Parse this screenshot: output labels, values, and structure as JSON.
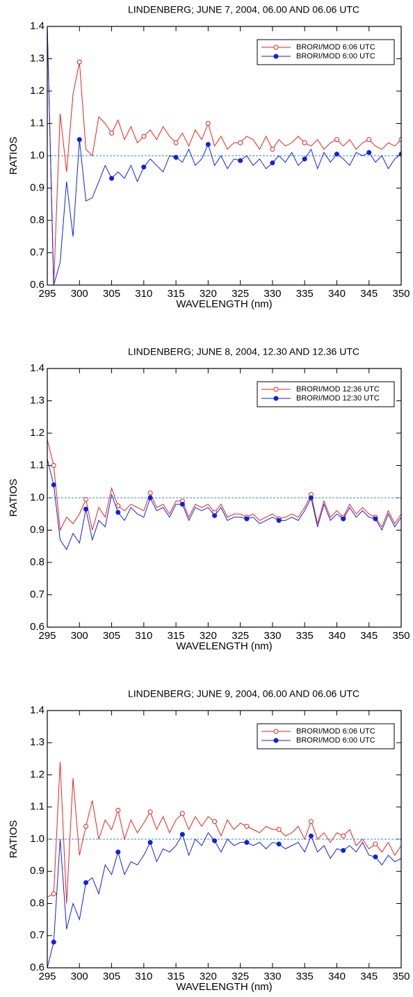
{
  "chart_data": [
    {
      "type": "line",
      "title": "LINDENBERG; JUNE 7, 2004, 06.00 AND 06.06 UTC",
      "xlabel": "WAVELENGTH (nm)",
      "ylabel": "RATIOS",
      "x": [
        295,
        296,
        297,
        298,
        299,
        300,
        301,
        302,
        303,
        304,
        305,
        306,
        307,
        308,
        309,
        310,
        311,
        312,
        313,
        314,
        315,
        316,
        317,
        318,
        319,
        320,
        321,
        322,
        323,
        324,
        325,
        326,
        327,
        328,
        329,
        330,
        331,
        332,
        333,
        334,
        335,
        336,
        337,
        338,
        339,
        340,
        341,
        342,
        343,
        344,
        345,
        346,
        347,
        348,
        349,
        350
      ],
      "series": [
        {
          "name": "BRORI/MOD 6:06 UTC",
          "color": "#e8221c",
          "marker": "open",
          "values": [
            1.4,
            0.6,
            1.13,
            0.95,
            1.19,
            1.29,
            1.02,
            1.0,
            1.12,
            1.1,
            1.07,
            1.11,
            1.05,
            1.09,
            1.04,
            1.06,
            1.08,
            1.05,
            1.09,
            1.06,
            1.04,
            1.07,
            1.03,
            1.08,
            1.05,
            1.1,
            1.03,
            1.06,
            1.02,
            1.04,
            1.04,
            1.06,
            1.05,
            1.02,
            1.06,
            1.02,
            1.05,
            1.03,
            1.04,
            1.06,
            1.04,
            1.03,
            1.05,
            1.02,
            1.04,
            1.05,
            1.03,
            1.05,
            1.02,
            1.04,
            1.05,
            1.03,
            1.02,
            1.04,
            1.03,
            1.05
          ]
        },
        {
          "name": "BRORI/MOD 6:00 UTC",
          "color": "#1020e0",
          "marker": "filled",
          "values": [
            1.4,
            0.6,
            0.67,
            0.92,
            0.75,
            1.05,
            0.86,
            0.87,
            0.92,
            0.97,
            0.93,
            0.95,
            0.93,
            0.97,
            0.92,
            0.965,
            0.99,
            0.97,
            0.95,
            1.0,
            0.995,
            0.98,
            1.02,
            0.97,
            0.99,
            1.035,
            0.97,
            1.0,
            0.96,
            0.99,
            0.985,
            1.0,
            0.97,
            0.99,
            0.96,
            0.978,
            1.0,
            0.98,
            1.01,
            0.97,
            0.99,
            1.02,
            0.96,
            1.01,
            0.98,
            1.005,
            0.99,
            0.97,
            1.01,
            1.0,
            1.01,
            0.98,
            1.0,
            0.96,
            0.99,
            1.005
          ]
        }
      ],
      "markevery": {
        "start": 5,
        "step": 5
      },
      "hline": {
        "value": 1,
        "color": "#2a8fd6",
        "style": "dashed"
      },
      "xlim": [
        295,
        350
      ],
      "ylim": [
        0.6,
        1.4
      ],
      "xticks": [
        295,
        300,
        305,
        310,
        315,
        320,
        325,
        330,
        335,
        340,
        345,
        350
      ],
      "yticks": [
        0.6,
        0.7,
        0.8,
        0.9,
        {
          "value": 1,
          "label": "1.0"
        },
        1.1,
        1.2,
        1.3,
        1.4
      ],
      "legend": "upper right"
    },
    {
      "type": "line",
      "title": "LINDENBERG; JUNE 8, 2004, 12.30 AND 12.36 UTC",
      "xlabel": "WAVELENGTH (nm)",
      "ylabel": "RATIOS",
      "x": [
        295,
        296,
        297,
        298,
        299,
        300,
        301,
        302,
        303,
        304,
        305,
        306,
        307,
        308,
        309,
        310,
        311,
        312,
        313,
        314,
        315,
        316,
        317,
        318,
        319,
        320,
        321,
        322,
        323,
        324,
        325,
        326,
        327,
        328,
        329,
        330,
        331,
        332,
        333,
        334,
        335,
        336,
        337,
        338,
        339,
        340,
        341,
        342,
        343,
        344,
        345,
        346,
        347,
        348,
        349,
        350
      ],
      "series": [
        {
          "name": "BRORI/MOD 12:36 UTC",
          "color": "#e8221c",
          "marker": "open",
          "values": [
            1.18,
            1.1,
            0.9,
            0.94,
            0.92,
            0.95,
            0.995,
            0.9,
            0.97,
            0.94,
            1.03,
            0.975,
            0.96,
            0.98,
            0.97,
            0.96,
            1.015,
            0.97,
            0.98,
            0.95,
            0.99,
            0.99,
            0.94,
            0.98,
            0.97,
            0.98,
            0.955,
            0.98,
            0.94,
            0.95,
            0.95,
            0.94,
            0.95,
            0.93,
            0.94,
            0.95,
            0.935,
            0.94,
            0.95,
            0.94,
            0.97,
            1.01,
            0.92,
            0.99,
            0.94,
            0.96,
            0.94,
            0.98,
            0.95,
            0.97,
            0.95,
            0.94,
            0.91,
            0.96,
            0.92,
            0.95
          ]
        },
        {
          "name": "BRORI/MOD 12:30 UTC",
          "color": "#1020e0",
          "marker": "filled",
          "values": [
            1.12,
            1.04,
            0.87,
            0.84,
            0.89,
            0.86,
            0.965,
            0.87,
            0.93,
            0.91,
            1.01,
            0.955,
            0.93,
            0.97,
            0.95,
            0.94,
            1.0,
            0.96,
            0.97,
            0.94,
            0.98,
            0.98,
            0.93,
            0.97,
            0.96,
            0.97,
            0.945,
            0.97,
            0.93,
            0.94,
            0.94,
            0.935,
            0.94,
            0.92,
            0.93,
            0.94,
            0.93,
            0.93,
            0.94,
            0.93,
            0.96,
            1.0,
            0.91,
            0.98,
            0.93,
            0.95,
            0.935,
            0.97,
            0.94,
            0.96,
            0.94,
            0.935,
            0.9,
            0.95,
            0.91,
            0.94
          ]
        }
      ],
      "markevery": {
        "start": 1,
        "step": 5
      },
      "hline": {
        "value": 1,
        "color": "#2a8fd6",
        "style": "dashed"
      },
      "xlim": [
        295,
        350
      ],
      "ylim": [
        0.6,
        1.4
      ],
      "xticks": [
        295,
        300,
        305,
        310,
        315,
        320,
        325,
        330,
        335,
        340,
        345,
        350
      ],
      "yticks": [
        0.6,
        0.7,
        0.8,
        0.9,
        {
          "value": 1,
          "label": "1.0"
        },
        1.1,
        1.2,
        1.3,
        1.4
      ],
      "legend": "upper right"
    },
    {
      "type": "line",
      "title": "LINDENBERG; JUNE 9, 2004, 06.00 AND 06.06 UTC",
      "xlabel": "WAVELENGTH (nm)",
      "ylabel": "RATIOS",
      "x": [
        295,
        296,
        297,
        298,
        299,
        300,
        301,
        302,
        303,
        304,
        305,
        306,
        307,
        308,
        309,
        310,
        311,
        312,
        313,
        314,
        315,
        316,
        317,
        318,
        319,
        320,
        321,
        322,
        323,
        324,
        325,
        326,
        327,
        328,
        329,
        330,
        331,
        332,
        333,
        334,
        335,
        336,
        337,
        338,
        339,
        340,
        341,
        342,
        343,
        344,
        345,
        346,
        347,
        348,
        349,
        350
      ],
      "series": [
        {
          "name": "BRORI/MOD 6:06 UTC",
          "color": "#e8221c",
          "marker": "open",
          "values": [
            0.82,
            0.83,
            1.24,
            0.8,
            1.19,
            0.95,
            1.04,
            1.12,
            1.0,
            1.06,
            1.03,
            1.09,
            1.0,
            1.06,
            1.02,
            1.05,
            1.085,
            1.03,
            1.07,
            1.02,
            1.06,
            1.08,
            1.03,
            1.07,
            1.04,
            1.07,
            1.055,
            1.01,
            1.06,
            1.03,
            1.05,
            1.04,
            1.03,
            1.02,
            1.04,
            1.03,
            1.03,
            1.01,
            1.02,
            1.04,
            1.0,
            1.055,
            1.0,
            1.02,
            0.99,
            1.02,
            1.01,
            1.03,
            0.98,
            1.0,
            0.97,
            0.985,
            0.96,
            0.99,
            0.95,
            0.98
          ]
        },
        {
          "name": "BRORI/MOD 6:00 UTC",
          "color": "#1020e0",
          "marker": "filled",
          "values": [
            0.6,
            0.68,
            1.0,
            0.72,
            0.8,
            0.75,
            0.865,
            0.88,
            0.83,
            0.92,
            0.89,
            0.96,
            0.89,
            0.93,
            0.92,
            0.95,
            0.99,
            0.93,
            0.97,
            0.96,
            0.98,
            1.015,
            0.95,
            1.0,
            0.98,
            1.02,
            0.995,
            0.96,
            1.0,
            0.98,
            0.99,
            0.99,
            0.98,
            0.99,
            0.97,
            0.99,
            0.985,
            0.97,
            0.98,
            0.99,
            0.96,
            1.01,
            0.96,
            0.98,
            0.94,
            0.97,
            0.965,
            0.98,
            0.96,
            0.99,
            0.95,
            0.945,
            0.92,
            0.95,
            0.93,
            0.94
          ]
        }
      ],
      "markevery": {
        "start": 1,
        "step": 5
      },
      "hline": {
        "value": 1,
        "color": "#2a8fd6",
        "style": "dashed"
      },
      "xlim": [
        295,
        350
      ],
      "ylim": [
        0.6,
        1.4
      ],
      "xticks": [
        295,
        300,
        305,
        310,
        315,
        320,
        325,
        330,
        335,
        340,
        345,
        350
      ],
      "yticks": [
        0.6,
        0.7,
        0.8,
        0.9,
        {
          "value": 1,
          "label": "1.0"
        },
        1.1,
        1.2,
        1.3,
        1.4
      ],
      "legend": "upper right"
    }
  ]
}
